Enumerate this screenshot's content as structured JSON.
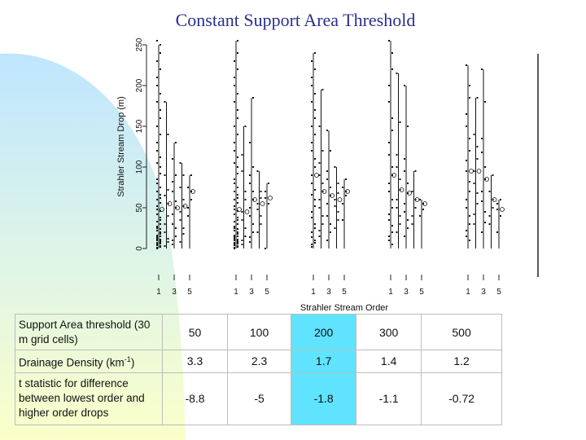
{
  "title": "Constant Support Area Threshold",
  "chart_data": {
    "type": "scatter",
    "ylabel": "Strahler Stream Drop (m)",
    "xlabel": "Strahler Stream Order",
    "ylim": [
      0,
      265
    ],
    "y_ticks": [
      "0",
      "50",
      "100",
      "150",
      "200",
      "250"
    ],
    "x_ticks": [
      "1",
      "3",
      "5"
    ],
    "order_range": [
      1,
      5
    ],
    "panels": [
      {
        "threshold": "50",
        "series": [
          {
            "order": 1,
            "values": [
              0,
              2,
              5,
              8,
              12,
              18,
              25,
              35,
              48,
              62,
              80,
              100,
              130,
              170,
              210,
              250
            ],
            "extra": [
              1,
              3,
              4,
              6,
              7,
              9,
              10,
              11,
              14,
              15,
              16,
              20,
              22,
              24,
              27,
              30,
              33,
              38,
              42,
              46,
              52,
              56,
              60,
              66,
              70,
              75,
              85,
              92,
              105,
              112,
              120,
              140,
              150,
              160,
              180,
              190,
              200,
              220,
              230,
              240,
              255
            ]
          },
          {
            "order": 2,
            "values": [
              3,
              12,
              30,
              55,
              90,
              140,
              180
            ],
            "extra": [
              8,
              20,
              40,
              65,
              72
            ]
          },
          {
            "order": 3,
            "values": [
              5,
              15,
              30,
              50,
              70,
              90,
              110,
              130
            ],
            "extra": [
              10,
              25,
              42,
              58,
              82
            ]
          },
          {
            "order": 4,
            "values": [
              8,
              25,
              45,
              60,
              75,
              90,
              105
            ],
            "extra": [
              18,
              35,
              52
            ]
          },
          {
            "order": 5,
            "values": [
              40,
              60,
              75,
              90
            ],
            "extra": [
              50,
              70
            ]
          }
        ]
      },
      {
        "threshold": "100",
        "series": [
          {
            "order": 1,
            "values": [
              0,
              2,
              5,
              8,
              12,
              18,
              25,
              35,
              48,
              62,
              80,
              100,
              130,
              170,
              210,
              255
            ],
            "extra": [
              1,
              3,
              4,
              6,
              7,
              9,
              10,
              11,
              14,
              15,
              16,
              20,
              22,
              24,
              27,
              30,
              33,
              38,
              42,
              46,
              52,
              56,
              60,
              66,
              70,
              75,
              85,
              92,
              105,
              112,
              120,
              140,
              150,
              160,
              180,
              190,
              200,
              220,
              230,
              240
            ]
          },
          {
            "order": 2,
            "values": [
              5,
              15,
              35,
              60,
              95,
              150
            ],
            "extra": [
              10,
              25,
              45,
              70,
              115
            ]
          },
          {
            "order": 3,
            "values": [
              8,
              20,
              40,
              60,
              80,
              100,
              130,
              185
            ],
            "extra": [
              14,
              30,
              50,
              70,
              90
            ]
          },
          {
            "order": 4,
            "values": [
              20,
              40,
              55,
              70,
              95
            ],
            "extra": [
              30,
              48,
              62
            ]
          },
          {
            "order": 5,
            "values": [
              0,
              55,
              70,
              80
            ],
            "extra": [
              62
            ]
          }
        ]
      },
      {
        "threshold": "200",
        "series": [
          {
            "order": 1,
            "values": [
              5,
              10,
              20,
              30,
              45,
              60,
              80,
              100,
              130,
              160,
              200,
              240
            ],
            "extra": [
              2,
              7,
              14,
              25,
              38,
              52,
              66,
              72,
              90,
              110,
              120,
              140,
              150,
              170,
              180,
              190,
              210,
              220,
              230
            ]
          },
          {
            "order": 2,
            "values": [
              15,
              30,
              50,
              70,
              90,
              120,
              150,
              195
            ],
            "extra": [
              22,
              40,
              60,
              80,
              105
            ]
          },
          {
            "order": 3,
            "values": [
              10,
              30,
              55,
              75,
              95,
              120,
              145
            ],
            "extra": [
              20,
              40,
              65,
              85
            ]
          },
          {
            "order": 4,
            "values": [
              25,
              45,
              60,
              80,
              100
            ],
            "extra": [
              35,
              52,
              68
            ]
          },
          {
            "order": 5,
            "values": [
              35,
              70,
              75,
              85
            ],
            "extra": [
              55,
              65
            ]
          }
        ]
      },
      {
        "threshold": "300",
        "series": [
          {
            "order": 1,
            "values": [
              10,
              20,
              35,
              50,
              70,
              90,
              115,
              145,
              180,
              220,
              255
            ],
            "extra": [
              5,
              15,
              28,
              42,
              60,
              80,
              100,
              130,
              160,
              200,
              240
            ]
          },
          {
            "order": 2,
            "values": [
              20,
              40,
              60,
              85,
              115,
              155,
              215
            ],
            "extra": [
              30,
              50,
              72,
              100
            ]
          },
          {
            "order": 3,
            "values": [
              15,
              35,
              55,
              80,
              110,
              150,
              200
            ],
            "extra": [
              25,
              45,
              68,
              95
            ]
          },
          {
            "order": 4,
            "values": [
              30,
              50,
              70,
              95
            ],
            "extra": [
              40,
              60
            ]
          },
          {
            "order": 5,
            "values": [
              40,
              55,
              60
            ],
            "extra": [
              48
            ]
          }
        ]
      },
      {
        "threshold": "500",
        "series": [
          {
            "order": 1,
            "values": [
              15,
              30,
              50,
              70,
              95,
              120,
              150,
              185,
              225
            ],
            "extra": [
              10,
              22,
              40,
              60,
              82,
              108,
              135,
              165,
              200
            ]
          },
          {
            "order": 2,
            "values": [
              30,
              55,
              80,
              110,
              140,
              185
            ],
            "extra": [
              42,
              68,
              95,
              125
            ]
          },
          {
            "order": 3,
            "values": [
              20,
              45,
              70,
              100,
              135,
              180,
              220
            ],
            "extra": [
              32,
              58,
              85,
              118
            ]
          },
          {
            "order": 4,
            "values": [
              30,
              50,
              70,
              90
            ],
            "extra": [
              40,
              60
            ]
          },
          {
            "order": 5,
            "values": [
              20,
              40,
              55,
              60
            ],
            "extra": [
              48
            ]
          }
        ]
      }
    ]
  },
  "table": {
    "rows": [
      {
        "label": "Support Area threshold (30 m grid cells)",
        "values": [
          "50",
          "100",
          "200",
          "300",
          "500"
        ]
      },
      {
        "label": "Drainage Density (km",
        "sup": "-1",
        "label_end": ")",
        "values": [
          "3.3",
          "2.3",
          "1.7",
          "1.4",
          "1.2"
        ]
      },
      {
        "label": "t statistic for difference between lowest order and higher order drops",
        "values": [
          "-8.8",
          "-5",
          "-1.8",
          "-1.1",
          "-0.72"
        ]
      }
    ],
    "highlight_column": 2,
    "highlight_color": "#5fe3ff"
  },
  "colors": {
    "title": "#2a2f8f",
    "background_gradient": [
      "#bfe6ff",
      "#f6ffd0"
    ]
  }
}
